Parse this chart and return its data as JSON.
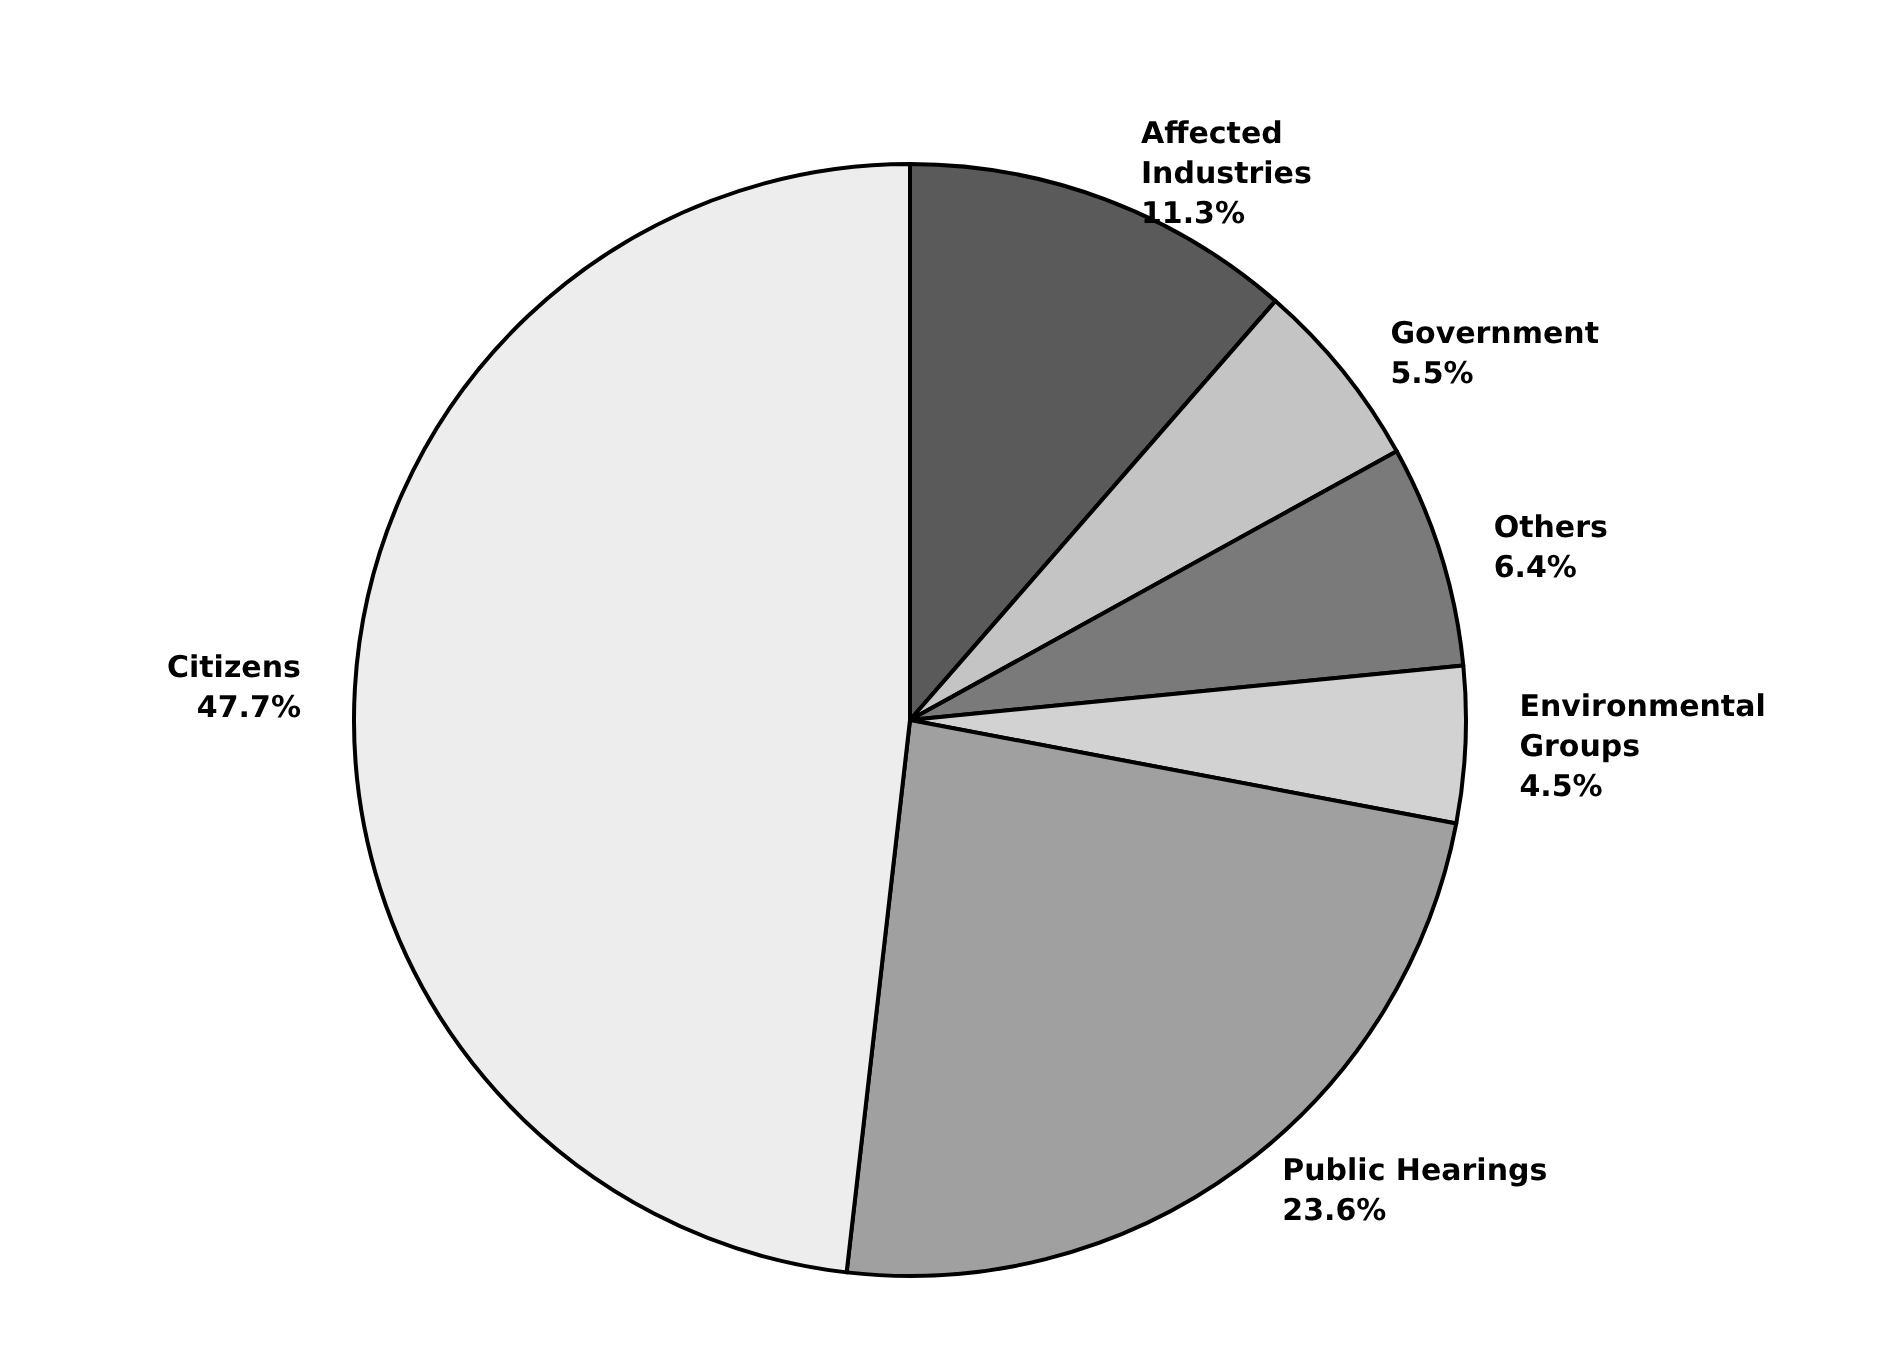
{
  "chart_data": {
    "type": "pie",
    "categories": [
      "Affected Industries",
      "Government",
      "Others",
      "Environmental Groups",
      "Public Hearings",
      "Citizens"
    ],
    "values": [
      11.3,
      5.5,
      6.4,
      4.5,
      23.6,
      47.7
    ],
    "value_labels": [
      "11.3%",
      "5.5%",
      "6.4%",
      "4.5%",
      "23.6%",
      "47.7%"
    ],
    "colors": [
      "#5a5a5a",
      "#c4c4c4",
      "#7a7a7a",
      "#d2d2d2",
      "#a0a0a0",
      "#ededed"
    ],
    "legend": false
  }
}
